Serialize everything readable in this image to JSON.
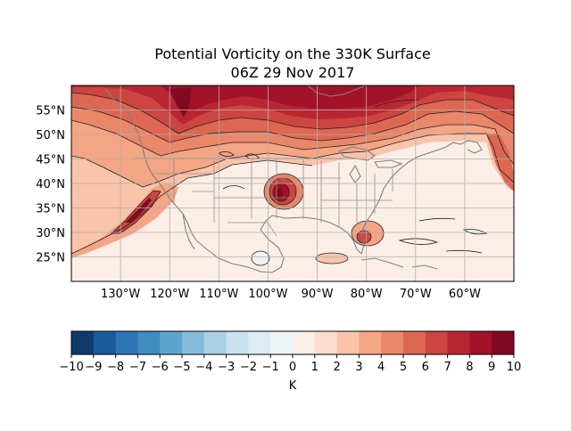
{
  "figure": {
    "title_line1": "Potential Vorticity on the 330K Surface",
    "title_line2": "06Z 29 Nov 2017"
  },
  "map": {
    "lat_labels": [
      "55°N",
      "50°N",
      "45°N",
      "40°N",
      "35°N",
      "30°N",
      "25°N"
    ],
    "lon_labels": [
      "130°W",
      "120°W",
      "110°W",
      "100°W",
      "90°W",
      "80°W",
      "70°W",
      "60°W"
    ],
    "lat_values": [
      55,
      50,
      45,
      40,
      35,
      30,
      25
    ],
    "lon_values": [
      -130,
      -120,
      -110,
      -100,
      -90,
      -80,
      -70,
      -60
    ],
    "extent": {
      "lon_min": -140,
      "lon_max": -50,
      "lat_min": 20,
      "lat_max": 60
    }
  },
  "colorbar": {
    "label": "K",
    "ticks": [
      "−10",
      "−9",
      "−8",
      "−7",
      "−6",
      "−5",
      "−4",
      "−3",
      "−2",
      "−1",
      "0",
      "1",
      "2",
      "3",
      "4",
      "5",
      "6",
      "7",
      "8",
      "9",
      "10"
    ],
    "colors": [
      "#0f3a6e",
      "#1b5a9c",
      "#2e75b6",
      "#3f8cc3",
      "#5ea4d0",
      "#85bcdc",
      "#a9d0e5",
      "#c9e1ee",
      "#deebf3",
      "#eef3f6",
      "#faeee7",
      "#fcdccc",
      "#f9c4a9",
      "#f4a584",
      "#e98769",
      "#dd6752",
      "#cd4540",
      "#b82731",
      "#a21228",
      "#7f0a21"
    ]
  }
}
